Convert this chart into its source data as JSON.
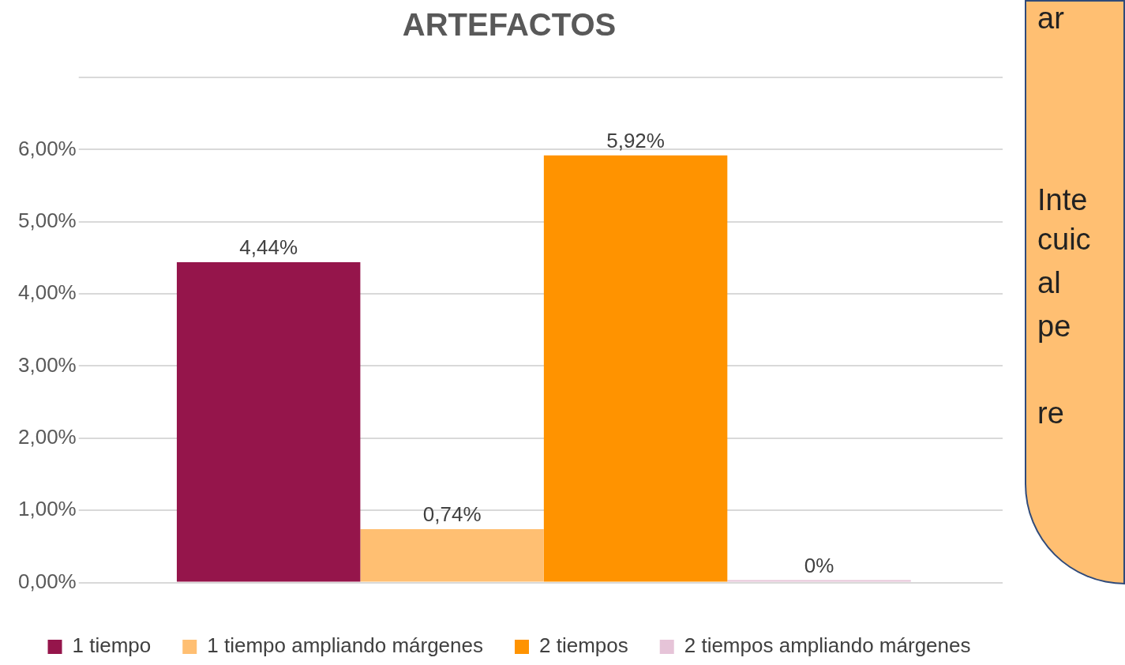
{
  "chart_data": {
    "type": "bar",
    "title": "ARTEFACTOS",
    "categories": [
      null
    ],
    "series": [
      {
        "name": "1 tiempo",
        "color": "#95154b",
        "values": [
          4.44
        ],
        "value_labels": [
          "4,44%"
        ]
      },
      {
        "name": "1 tiempo ampliando márgenes",
        "color": "#ffbf72",
        "values": [
          0.74
        ],
        "value_labels": [
          "0,74%"
        ]
      },
      {
        "name": "2 tiempos",
        "color": "#ff9300",
        "values": [
          5.92
        ],
        "value_labels": [
          "5,92%"
        ]
      },
      {
        "name": "2 tiempos ampliando márgenes",
        "color": "#e6c4d8",
        "values": [
          0
        ],
        "value_labels": [
          "0%"
        ]
      }
    ],
    "ylim": [
      0,
      7
    ],
    "yticks": [
      {
        "value": 0,
        "label": "0,00%"
      },
      {
        "value": 1,
        "label": "1,00%"
      },
      {
        "value": 2,
        "label": "2,00%"
      },
      {
        "value": 3,
        "label": "3,00%"
      },
      {
        "value": 4,
        "label": "4,00%"
      },
      {
        "value": 5,
        "label": "5,00%"
      },
      {
        "value": 6,
        "label": "6,00%"
      },
      {
        "value": 7,
        "label": null
      }
    ],
    "grid": "y",
    "legend": "bottom",
    "annotations": [
      "ar",
      "Inte",
      "cuic",
      "al",
      "pe",
      "re"
    ]
  }
}
